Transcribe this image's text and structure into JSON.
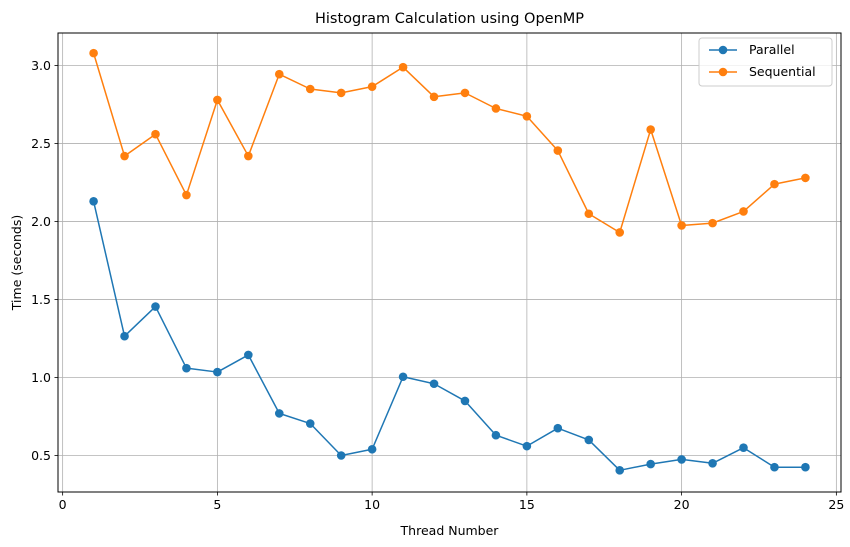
{
  "chart_data": {
    "type": "line",
    "title": "Histogram Calculation using OpenMP",
    "xlabel": "Thread Number",
    "ylabel": "Time (seconds)",
    "xlim": [
      -0.15,
      25.15
    ],
    "ylim": [
      0.266,
      3.209
    ],
    "xticks": [
      0,
      5,
      10,
      15,
      20,
      25
    ],
    "yticks": [
      0.5,
      1.0,
      1.5,
      2.0,
      2.5,
      3.0
    ],
    "xtick_labels": [
      "0",
      "5",
      "10",
      "15",
      "20",
      "25"
    ],
    "ytick_labels": [
      "0.5",
      "1.0",
      "1.5",
      "2.0",
      "2.5",
      "3.0"
    ],
    "grid": true,
    "legend_position": "top-right",
    "x": [
      1,
      2,
      3,
      4,
      5,
      6,
      7,
      8,
      9,
      10,
      11,
      12,
      13,
      14,
      15,
      16,
      17,
      18,
      19,
      20,
      21,
      22,
      23,
      24
    ],
    "series": [
      {
        "name": "Parallel",
        "color": "#1f77b4",
        "values": [
          2.13,
          1.265,
          1.455,
          1.06,
          1.035,
          1.145,
          0.77,
          0.705,
          0.5,
          0.54,
          1.005,
          0.96,
          0.85,
          0.63,
          0.56,
          0.675,
          0.6,
          0.405,
          0.445,
          0.475,
          0.45,
          0.55,
          0.425,
          0.425
        ]
      },
      {
        "name": "Sequential",
        "color": "#ff7f0e",
        "values": [
          3.08,
          2.42,
          2.56,
          2.17,
          2.78,
          2.42,
          2.945,
          2.85,
          2.825,
          2.865,
          2.99,
          2.8,
          2.825,
          2.725,
          2.675,
          2.455,
          2.05,
          1.93,
          2.59,
          1.975,
          1.99,
          2.065,
          2.24,
          2.28
        ]
      }
    ]
  }
}
